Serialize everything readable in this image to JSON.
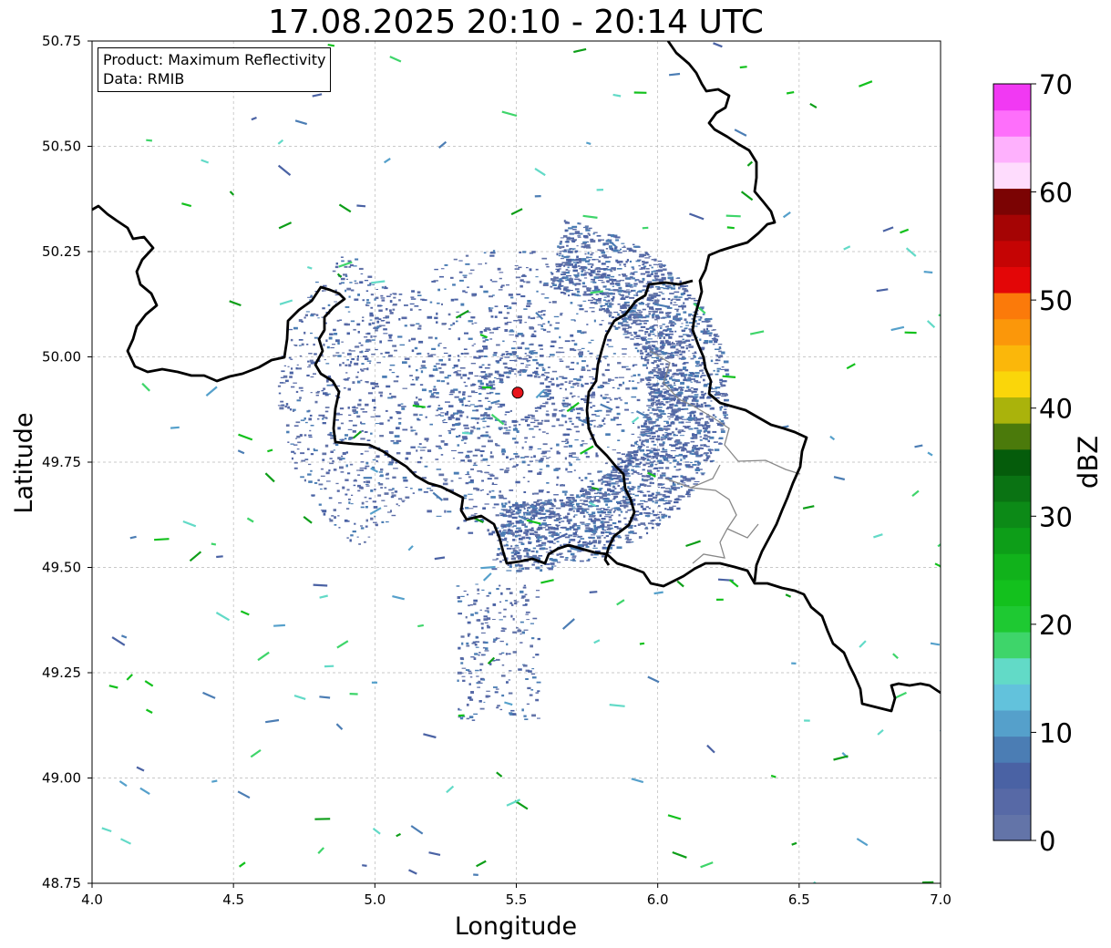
{
  "title": "17.08.2025 20:10 - 20:14 UTC",
  "info_box": {
    "product_line": "Product: Maximum Reflectivity",
    "data_line": "Data: RMIB"
  },
  "map": {
    "xlabel": "Longitude",
    "ylabel": "Latitude",
    "xlim": [
      4.0,
      7.0
    ],
    "ylim": [
      48.75,
      50.75
    ],
    "x_ticks": [
      "4.0",
      "4.5",
      "5.0",
      "5.5",
      "6.0",
      "6.5",
      "7.0"
    ],
    "y_ticks": [
      "48.75",
      "49.00",
      "49.25",
      "49.50",
      "49.75",
      "50.00",
      "50.25",
      "50.50",
      "50.75"
    ],
    "grid": true,
    "radar_site": {
      "lon": 5.505,
      "lat": 49.915,
      "color": "#e8141b"
    }
  },
  "colorbar": {
    "label": "dBZ",
    "range": [
      0,
      70
    ],
    "ticks": [
      "0",
      "10",
      "20",
      "30",
      "40",
      "50",
      "60",
      "70"
    ],
    "colors": [
      "#6374a8",
      "#5769a6",
      "#4a62a4",
      "#4b7db4",
      "#55a0cb",
      "#62c2dc",
      "#62dac7",
      "#3ed56a",
      "#1ec932",
      "#13c11d",
      "#11b21b",
      "#0d9e18",
      "#0c8a17",
      "#0a7313",
      "#055c0b",
      "#4b7a0b",
      "#aab30b",
      "#fad60a",
      "#fbb70a",
      "#fb970a",
      "#fb7a0a",
      "#e30607",
      "#c50404",
      "#a50404",
      "#7b0303",
      "#fedcfd",
      "#feb1fd",
      "#fe6ffb",
      "#f139f3"
    ]
  }
}
